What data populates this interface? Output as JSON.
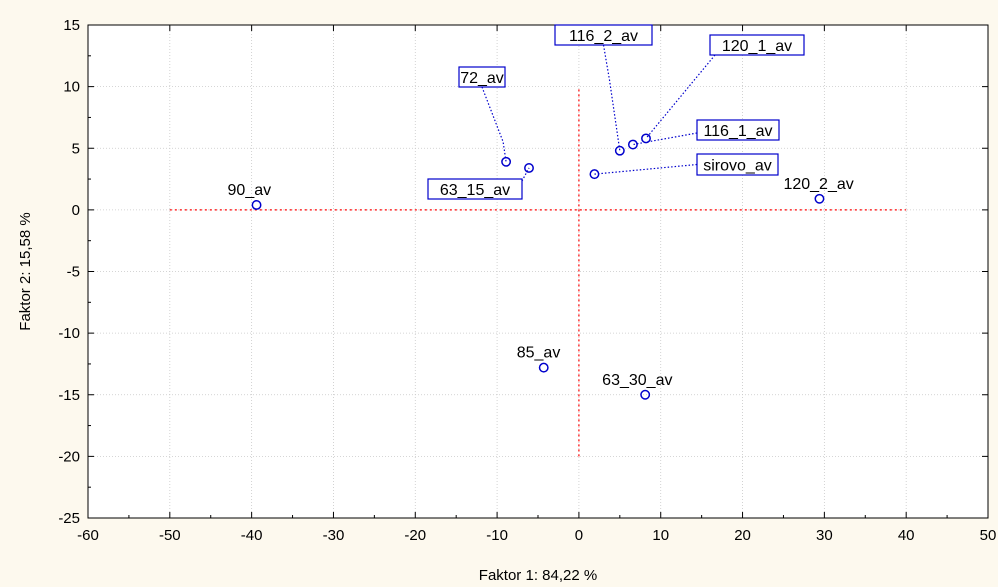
{
  "chart_data": {
    "type": "scatter",
    "xlabel": "Faktor 1: 84,22 %",
    "ylabel": "Faktor 2: 15,58 %",
    "xlim": [
      -60,
      50
    ],
    "ylim": [
      -25,
      15
    ],
    "xticks": [
      -60,
      -50,
      -40,
      -30,
      -20,
      -10,
      0,
      10,
      20,
      30,
      40,
      50
    ],
    "yticks": [
      -25,
      -20,
      -15,
      -10,
      -5,
      0,
      5,
      10,
      15
    ],
    "grid": true,
    "reference_lines": {
      "horizontal_y": 0,
      "horizontal_x_range": [
        -50,
        40
      ],
      "vertical_x": 0,
      "vertical_y_range": [
        -20,
        10
      ],
      "color": "#ff0000",
      "style": "dotted"
    },
    "marker_color": "#0000cc",
    "points": [
      {
        "label": "90_av",
        "x": -39.4,
        "y": 0.4,
        "boxed": false
      },
      {
        "label": "72_av",
        "x": -8.9,
        "y": 3.9,
        "boxed": true
      },
      {
        "label": "63_15_av",
        "x": -6.1,
        "y": 3.4,
        "boxed": true
      },
      {
        "label": "sirovo_av",
        "x": 1.9,
        "y": 2.9,
        "boxed": true
      },
      {
        "label": "116_2_av",
        "x": 5.0,
        "y": 4.8,
        "boxed": true
      },
      {
        "label": "116_1_av",
        "x": 6.6,
        "y": 5.3,
        "boxed": true
      },
      {
        "label": "120_1_av",
        "x": 8.2,
        "y": 5.8,
        "boxed": true
      },
      {
        "label": "120_2_av",
        "x": 29.4,
        "y": 0.9,
        "boxed": false
      },
      {
        "label": "85_av",
        "x": -4.3,
        "y": -12.8,
        "boxed": false
      },
      {
        "label": "63_30_av",
        "x": 8.1,
        "y": -15.0,
        "boxed": false
      }
    ]
  }
}
